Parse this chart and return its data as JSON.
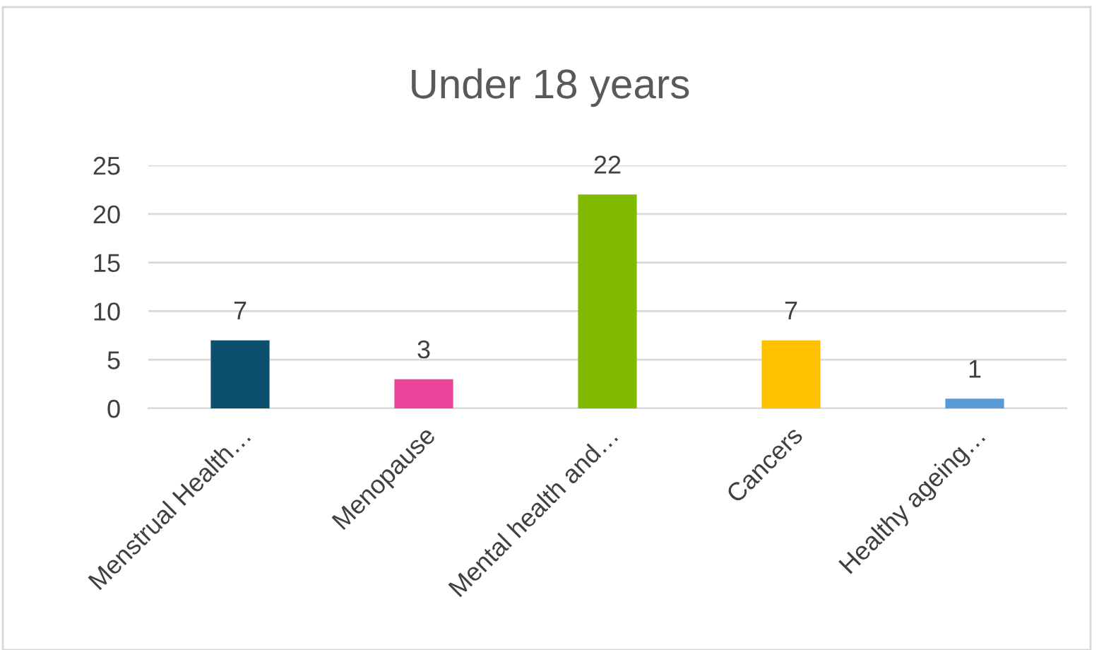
{
  "chart_data": {
    "type": "bar",
    "title": "Under 18 years",
    "categories": [
      "Menstrual Health…",
      "Menopause",
      "Mental health and…",
      "Cancers",
      "Healthy ageing…"
    ],
    "values": [
      7,
      3,
      22,
      7,
      1
    ],
    "colors": [
      "#0b4f6c",
      "#e8449a",
      "#7fba00",
      "#ffc000",
      "#5b9bd5"
    ],
    "ylim": [
      0,
      25
    ],
    "yticks": [
      0,
      5,
      10,
      15,
      20,
      25
    ],
    "grid": "y",
    "data_labels": true,
    "legend": false
  }
}
